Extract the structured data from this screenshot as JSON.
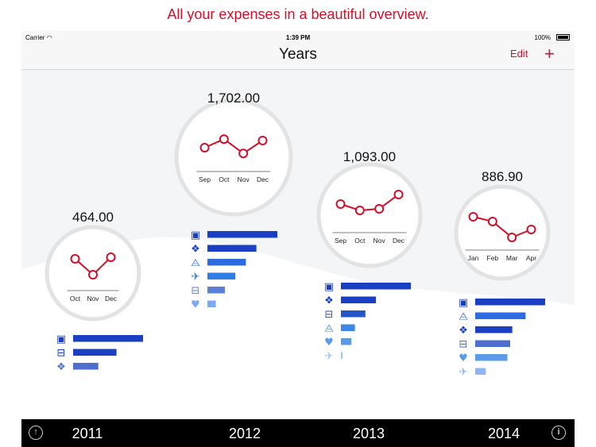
{
  "promo_text": "All your expenses in a beautiful overview.",
  "status": {
    "carrier": "Carrier",
    "time": "1:39 PM",
    "battery": "100%"
  },
  "nav": {
    "title": "Years",
    "edit": "Edit",
    "add": "+"
  },
  "accent_color": "#d0102a",
  "years": [
    {
      "year": "2011",
      "total": "464.00",
      "months": [
        "Oct",
        "Nov",
        "Dec"
      ],
      "trend": [
        0.7,
        0.2,
        0.75
      ],
      "categories": [
        {
          "icon": "games-icon",
          "value": 1.0,
          "color": "#1a3fc2"
        },
        {
          "icon": "train-icon",
          "value": 0.62,
          "color": "#1a3fc2"
        },
        {
          "icon": "shirt-icon",
          "value": 0.36,
          "color": "#4f6fd0"
        }
      ]
    },
    {
      "year": "2012",
      "total": "1,702.00",
      "months": [
        "Sep",
        "Oct",
        "Nov",
        "Dec"
      ],
      "trend": [
        0.5,
        0.8,
        0.3,
        0.75
      ],
      "categories": [
        {
          "icon": "games-icon",
          "value": 1.0,
          "color": "#1a3fc2"
        },
        {
          "icon": "shirt-icon",
          "value": 0.7,
          "color": "#1a3fc2"
        },
        {
          "icon": "cart-icon",
          "value": 0.55,
          "color": "#2f6be0"
        },
        {
          "icon": "plane-icon",
          "value": 0.4,
          "color": "#2f7ee8"
        },
        {
          "icon": "train-icon",
          "value": 0.25,
          "color": "#5a7fd6"
        },
        {
          "icon": "heart-icon",
          "value": 0.12,
          "color": "#7aaaf0"
        }
      ]
    },
    {
      "year": "2013",
      "total": "1,093.00",
      "months": [
        "Sep",
        "Oct",
        "Nov",
        "Dec"
      ],
      "trend": [
        0.6,
        0.4,
        0.45,
        0.9
      ],
      "categories": [
        {
          "icon": "games-icon",
          "value": 1.0,
          "color": "#1a3fc2"
        },
        {
          "icon": "shirt-icon",
          "value": 0.5,
          "color": "#1a3fc2"
        },
        {
          "icon": "train-icon",
          "value": 0.35,
          "color": "#2456c8"
        },
        {
          "icon": "cart-icon",
          "value": 0.2,
          "color": "#3b86e6"
        },
        {
          "icon": "heart-icon",
          "value": 0.15,
          "color": "#5a9be8"
        },
        {
          "icon": "plane-icon",
          "value": 0.02,
          "color": "#9fc3f2"
        }
      ]
    },
    {
      "year": "2014",
      "total": "886.90",
      "months": [
        "Jan",
        "Feb",
        "Mar",
        "Apr"
      ],
      "trend": [
        0.75,
        0.6,
        0.1,
        0.35
      ],
      "categories": [
        {
          "icon": "games-icon",
          "value": 1.0,
          "color": "#1a3fc2"
        },
        {
          "icon": "cart-icon",
          "value": 0.72,
          "color": "#2f6be0"
        },
        {
          "icon": "shirt-icon",
          "value": 0.53,
          "color": "#1a3fc2"
        },
        {
          "icon": "train-icon",
          "value": 0.5,
          "color": "#4f6fd0"
        },
        {
          "icon": "heart-icon",
          "value": 0.46,
          "color": "#5a9be8"
        },
        {
          "icon": "plane-icon",
          "value": 0.15,
          "color": "#8fb6f0"
        }
      ]
    }
  ],
  "tabbar": {
    "share_icon": "share-icon",
    "info_icon": "info-icon"
  }
}
